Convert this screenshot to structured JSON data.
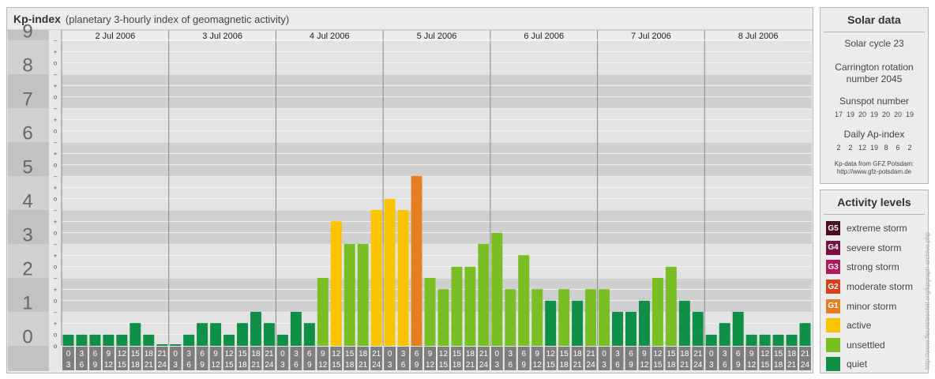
{
  "header": {
    "title": "Kp-index",
    "subtitle": "(planetary 3-hourly index of geomagnetic activity)"
  },
  "chart_data": {
    "type": "bar",
    "title": "Kp-index",
    "subtitle": "(planetary 3-hourly index of geomagnetic activity)",
    "ylim": [
      0,
      9
    ],
    "y_major_labels": [
      "0",
      "1",
      "2",
      "3",
      "4",
      "5",
      "6",
      "7",
      "8",
      "9"
    ],
    "y_minor_labels": [
      "–",
      "o",
      "+"
    ],
    "grid": true,
    "days": [
      "2 Jul 2006",
      "3 Jul 2006",
      "4 Jul 2006",
      "5 Jul 2006",
      "6 Jul 2006",
      "7 Jul 2006",
      "8 Jul 2006"
    ],
    "interval_start_labels": [
      "0",
      "3",
      "6",
      "9",
      "12",
      "15",
      "18",
      "21"
    ],
    "interval_end_labels": [
      "3",
      "6",
      "9",
      "12",
      "15",
      "18",
      "21",
      "24"
    ],
    "values": [
      0.33,
      0.33,
      0.33,
      0.33,
      0.33,
      0.67,
      0.33,
      0,
      0,
      0.33,
      0.67,
      0.67,
      0.33,
      0.67,
      1,
      0.67,
      0.33,
      1,
      0.67,
      2,
      3.67,
      3,
      3,
      4,
      4.33,
      4,
      5,
      2,
      1.67,
      2.33,
      2.33,
      3,
      3.33,
      1.67,
      2.67,
      1.67,
      1.33,
      1.67,
      1.33,
      1.67,
      1.67,
      1,
      1,
      1.33,
      2,
      2.33,
      1.33,
      1,
      0.33,
      0.67,
      1,
      0.33,
      0.33,
      0.33,
      0.33,
      0.67
    ],
    "colors": {
      "quiet": "#0f8f47",
      "unsettled": "#79bf24",
      "active": "#fbc400",
      "g1": "#e67e22",
      "g2": "#d4431c",
      "g3": "#b0195a",
      "g4": "#7a1040",
      "g5": "#4a0a26"
    }
  },
  "solar": {
    "title": "Solar data",
    "cycle": "Solar cycle 23",
    "carrington_line1": "Carrington rotation",
    "carrington_line2": "number 2045",
    "sunspot_label": "Sunspot number",
    "sunspot_values": [
      "17",
      "19",
      "20",
      "19",
      "20",
      "20",
      "19"
    ],
    "ap_label": "Daily Ap-index",
    "ap_values": [
      "2",
      "2",
      "12",
      "19",
      "8",
      "6",
      "2"
    ],
    "source_line1": "Kp-data from GFZ Potsdam:",
    "source_line2": "http://www.gfz-potsdam.de"
  },
  "activity": {
    "title": "Activity levels",
    "levels": [
      {
        "code": "G5",
        "label": "extreme storm",
        "color": "#4a0a26"
      },
      {
        "code": "G4",
        "label": "severe storm",
        "color": "#7a1040"
      },
      {
        "code": "G3",
        "label": "strong storm",
        "color": "#b0195a"
      },
      {
        "code": "G2",
        "label": "moderate storm",
        "color": "#d4431c"
      },
      {
        "code": "G1",
        "label": "minor storm",
        "color": "#e67e22"
      },
      {
        "code": "",
        "label": "active",
        "color": "#fbc400"
      },
      {
        "code": "",
        "label": "unsettled",
        "color": "#79bf24"
      },
      {
        "code": "",
        "label": "quiet",
        "color": "#0f8f47"
      }
    ]
  },
  "watermark": "http://www.fleuristesoleil.org/kpgraph archive.php"
}
